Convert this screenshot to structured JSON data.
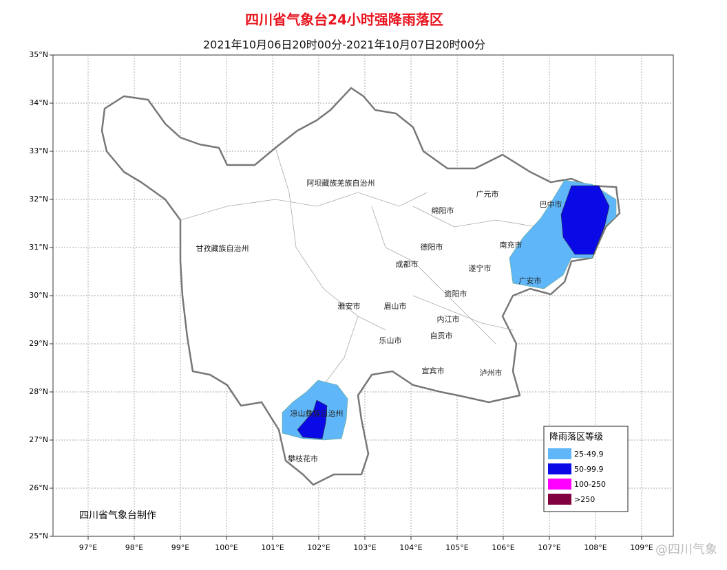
{
  "header": {
    "title": "四川省气象台24小时强降雨落区",
    "subtitle": "2021年10月06日20时00分-2021年10月07日20时00分"
  },
  "lat_labels": [
    "35°N",
    "34°N",
    "33°N",
    "32°N",
    "31°N",
    "30°N",
    "29°N",
    "28°N",
    "27°N",
    "26°N",
    "25°N"
  ],
  "lon_labels": [
    "97°E",
    "98°E",
    "99°E",
    "100°E",
    "101°E",
    "102°E",
    "103°E",
    "104°E",
    "105°E",
    "106°E",
    "107°E",
    "108°E",
    "109°E"
  ],
  "places": [
    "阿坝藏族羌族自治州",
    "甘孜藏族自治州",
    "广元市",
    "巴中市",
    "绵阳市",
    "南充市",
    "德阳市",
    "成都市",
    "遂宁市",
    "广安市",
    "资阳市",
    "雅安市",
    "眉山市",
    "内江市",
    "自贡市",
    "乐山市",
    "宜宾市",
    "泸州市",
    "凉山彝族自治州",
    "攀枝花市"
  ],
  "legend": {
    "title": "降雨落区等级",
    "items": [
      {
        "label": "25-49.9",
        "color": "#5fb6f8"
      },
      {
        "label": "50-99.9",
        "color": "#0a0ae6"
      },
      {
        "label": "100-250",
        "color": "#ff00ff"
      },
      {
        "label": ">250",
        "color": "#800040"
      }
    ]
  },
  "credit": "四川省气象台制作",
  "watermark": "@四川气象"
}
